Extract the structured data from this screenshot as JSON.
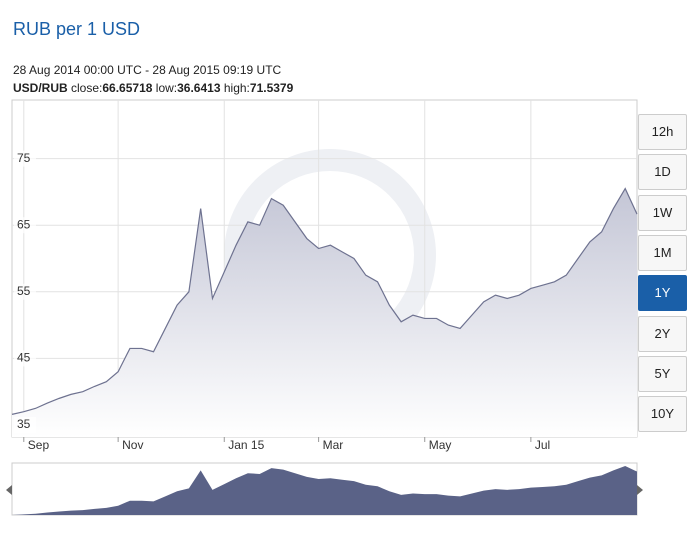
{
  "header": {
    "title": "RUB per 1 USD",
    "range": "28 Aug 2014 00:00 UTC - 28 Aug 2015 09:19 UTC",
    "pair": "USD/RUB",
    "stats": [
      {
        "label": "close:",
        "value": 66.65718
      },
      {
        "label": "low:",
        "value": 36.6413
      },
      {
        "label": "high:",
        "value": 71.5379
      }
    ]
  },
  "buttons": [
    {
      "label": "12h",
      "selected": false
    },
    {
      "label": "1D",
      "selected": false
    },
    {
      "label": "1W",
      "selected": false
    },
    {
      "label": "1M",
      "selected": false
    },
    {
      "label": "1Y",
      "selected": true
    },
    {
      "label": "2Y",
      "selected": false
    },
    {
      "label": "5Y",
      "selected": false
    },
    {
      "label": "10Y",
      "selected": false
    }
  ],
  "chart_data": {
    "type": "area",
    "color": "#6e7290",
    "grid": true,
    "categories": [
      null,
      "Sep",
      null,
      null,
      null,
      null,
      null,
      null,
      null,
      "Nov",
      null,
      null,
      null,
      null,
      null,
      null,
      null,
      null,
      "Jan 15",
      null,
      null,
      null,
      null,
      null,
      null,
      null,
      "Mar",
      null,
      null,
      null,
      null,
      null,
      null,
      null,
      null,
      "May",
      null,
      null,
      null,
      null,
      null,
      null,
      null,
      null,
      "Jul",
      null,
      null,
      null,
      null,
      null,
      null,
      null,
      null,
      null
    ],
    "values": [
      36.6,
      37.0,
      37.5,
      38.3,
      39.0,
      39.6,
      40.0,
      40.8,
      41.5,
      43.0,
      46.5,
      46.5,
      46.0,
      49.5,
      53.0,
      55.0,
      67.5,
      54.0,
      58.0,
      62.0,
      65.5,
      65.0,
      69.0,
      68.0,
      65.5,
      63.0,
      61.5,
      62.0,
      61.0,
      60.0,
      57.5,
      56.5,
      53.0,
      50.5,
      51.5,
      51.0,
      51.0,
      50.0,
      49.5,
      51.5,
      53.5,
      54.5,
      54.0,
      54.5,
      55.5,
      56.0,
      56.5,
      57.5,
      60.0,
      62.5,
      64.0,
      67.5,
      70.5,
      66.66
    ],
    "ylim": [
      33.2,
      83.8
    ],
    "yticks": [
      35,
      45,
      55,
      65,
      75
    ]
  }
}
